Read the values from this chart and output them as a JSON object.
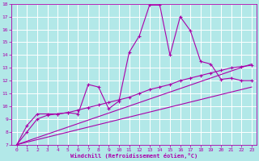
{
  "xlabel": "Windchill (Refroidissement éolien,°C)",
  "background_color": "#b2e8e8",
  "grid_color": "#ffffff",
  "line_color": "#aa00aa",
  "xlim": [
    -0.5,
    23.5
  ],
  "ylim": [
    7,
    18
  ],
  "xticks": [
    0,
    1,
    2,
    3,
    4,
    5,
    6,
    7,
    8,
    9,
    10,
    11,
    12,
    13,
    14,
    15,
    16,
    17,
    18,
    19,
    20,
    21,
    22,
    23
  ],
  "yticks": [
    7,
    8,
    9,
    10,
    11,
    12,
    13,
    14,
    15,
    16,
    17,
    18
  ],
  "series1_x": [
    0,
    1,
    2,
    3,
    4,
    5,
    6,
    7,
    8,
    9,
    10,
    11,
    12,
    13,
    14,
    15,
    16,
    17,
    18,
    19,
    20,
    21,
    22,
    23
  ],
  "series1_y": [
    7.0,
    8.5,
    9.4,
    9.4,
    9.4,
    9.5,
    9.4,
    11.7,
    11.5,
    9.8,
    10.4,
    14.2,
    15.5,
    17.9,
    17.9,
    14.0,
    17.0,
    15.9,
    13.5,
    13.3,
    12.1,
    12.2,
    12.0,
    12.0
  ],
  "series2_x": [
    0,
    1,
    2,
    3,
    4,
    5,
    6,
    7,
    8,
    9,
    10,
    11,
    12,
    13,
    14,
    15,
    16,
    17,
    18,
    19,
    20,
    21,
    22,
    23
  ],
  "series2_y": [
    7.0,
    8.0,
    9.0,
    9.3,
    9.4,
    9.5,
    9.7,
    9.9,
    10.1,
    10.3,
    10.5,
    10.7,
    11.0,
    11.3,
    11.5,
    11.7,
    12.0,
    12.2,
    12.4,
    12.6,
    12.8,
    13.0,
    13.1,
    13.2
  ],
  "series3_x": [
    0,
    23
  ],
  "series3_y": [
    7.0,
    11.5
  ],
  "series4_x": [
    0,
    23
  ],
  "series4_y": [
    7.0,
    13.3
  ]
}
